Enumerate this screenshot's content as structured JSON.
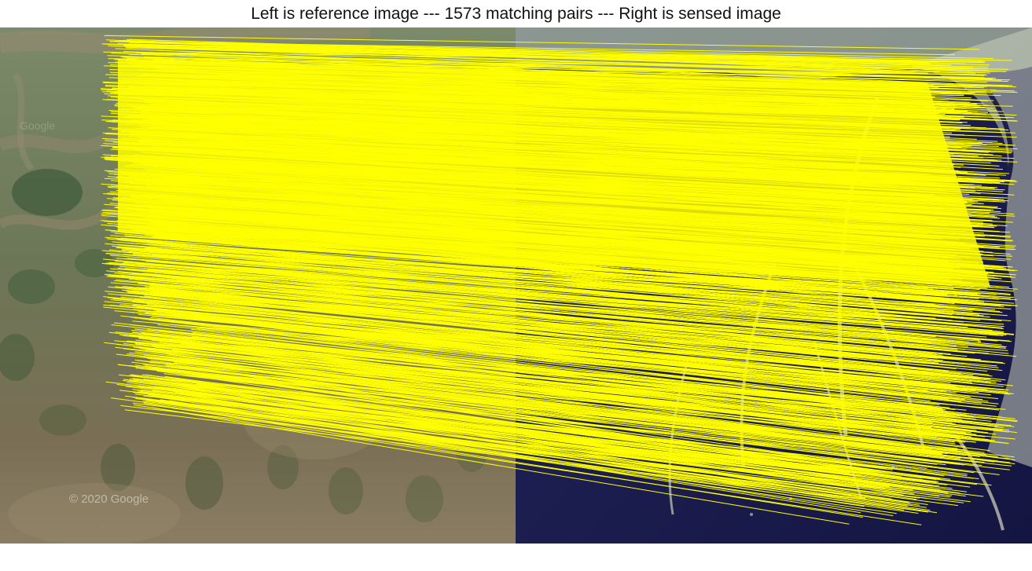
{
  "window": {
    "title": "Left is reference image --- 1573 matching pairs --- Right is sensed image"
  },
  "reference_image": {
    "watermark": "© 2020 Google"
  },
  "matches": {
    "line_color": "#ffff00"
  },
  "colors": {
    "figure_background": "#ffffff",
    "reference_land": "#6f7558",
    "sensed_water": "#1c1d55",
    "match_line": "#ffff00"
  }
}
